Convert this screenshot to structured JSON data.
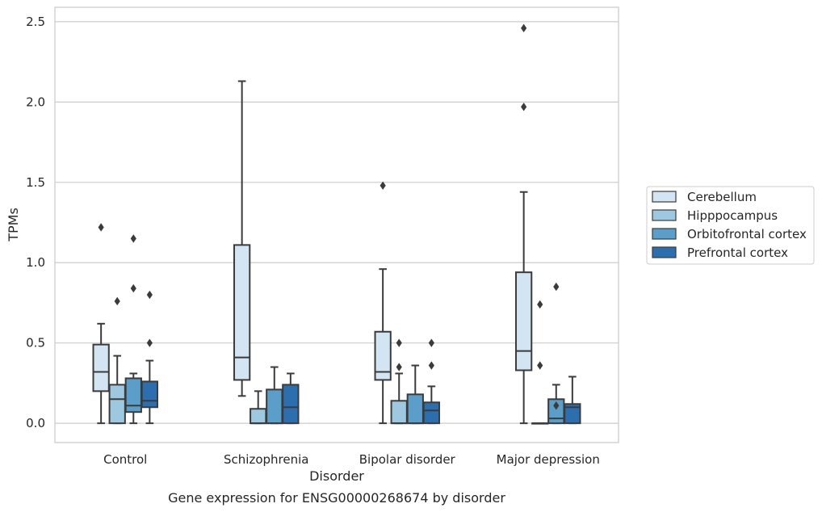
{
  "chart_data": {
    "type": "box",
    "title": "",
    "caption": "Gene expression for ENSG00000268674 by disorder",
    "xlabel": "Disorder",
    "ylabel": "TPMs",
    "ylim": [
      -0.12,
      2.59
    ],
    "yticks": [
      "0.0",
      "0.5",
      "1.0",
      "1.5",
      "2.0",
      "2.5"
    ],
    "grid": true,
    "legend_position": "right",
    "categories": [
      "Control",
      "Schizophrenia",
      "Bipolar disorder",
      "Major depression"
    ],
    "series": [
      {
        "name": "Cerebellum",
        "color": "#d3e4f3",
        "boxes": [
          {
            "whislo": 0.0,
            "q1": 0.2,
            "med": 0.32,
            "q3": 0.49,
            "whishi": 0.62,
            "fliers": [
              1.22
            ]
          },
          {
            "whislo": 0.17,
            "q1": 0.27,
            "med": 0.41,
            "q3": 1.11,
            "whishi": 2.13,
            "fliers": []
          },
          {
            "whislo": 0.0,
            "q1": 0.27,
            "med": 0.32,
            "q3": 0.57,
            "whishi": 0.96,
            "fliers": [
              1.48
            ]
          },
          {
            "whislo": 0.0,
            "q1": 0.33,
            "med": 0.45,
            "q3": 0.94,
            "whishi": 1.44,
            "fliers": [
              1.97,
              2.46
            ]
          }
        ]
      },
      {
        "name": "Hipppocampus",
        "color": "#9dc8e0",
        "boxes": [
          {
            "whislo": 0.0,
            "q1": 0.0,
            "med": 0.15,
            "q3": 0.24,
            "whishi": 0.42,
            "fliers": [
              0.76
            ]
          },
          {
            "whislo": 0.0,
            "q1": 0.0,
            "med": 0.0,
            "q3": 0.09,
            "whishi": 0.2,
            "fliers": []
          },
          {
            "whislo": 0.0,
            "q1": 0.0,
            "med": 0.0,
            "q3": 0.14,
            "whishi": 0.31,
            "fliers": [
              0.35,
              0.5
            ]
          },
          {
            "whislo": 0.0,
            "q1": 0.0,
            "med": 0.0,
            "q3": 0.0,
            "whishi": 0.0,
            "fliers": [
              0.36,
              0.74
            ]
          }
        ]
      },
      {
        "name": "Orbitofrontal cortex",
        "color": "#5b9ec9",
        "boxes": [
          {
            "whislo": 0.0,
            "q1": 0.07,
            "med": 0.11,
            "q3": 0.28,
            "whishi": 0.31,
            "fliers": [
              0.84,
              1.15
            ]
          },
          {
            "whislo": 0.0,
            "q1": 0.0,
            "med": 0.0,
            "q3": 0.21,
            "whishi": 0.35,
            "fliers": []
          },
          {
            "whislo": 0.0,
            "q1": 0.0,
            "med": 0.0,
            "q3": 0.18,
            "whishi": 0.36,
            "fliers": []
          },
          {
            "whislo": 0.0,
            "q1": 0.0,
            "med": 0.03,
            "q3": 0.15,
            "whishi": 0.24,
            "fliers": [
              0.11,
              0.85
            ]
          }
        ]
      },
      {
        "name": "Prefrontal cortex",
        "color": "#2d6fae",
        "boxes": [
          {
            "whislo": 0.0,
            "q1": 0.1,
            "med": 0.14,
            "q3": 0.26,
            "whishi": 0.39,
            "fliers": [
              0.5,
              0.8
            ]
          },
          {
            "whislo": 0.0,
            "q1": 0.0,
            "med": 0.1,
            "q3": 0.24,
            "whishi": 0.31,
            "fliers": []
          },
          {
            "whislo": 0.0,
            "q1": 0.0,
            "med": 0.08,
            "q3": 0.13,
            "whishi": 0.23,
            "fliers": [
              0.36,
              0.5
            ]
          },
          {
            "whislo": 0.0,
            "q1": 0.0,
            "med": 0.1,
            "q3": 0.12,
            "whishi": 0.29,
            "fliers": []
          }
        ]
      }
    ]
  }
}
